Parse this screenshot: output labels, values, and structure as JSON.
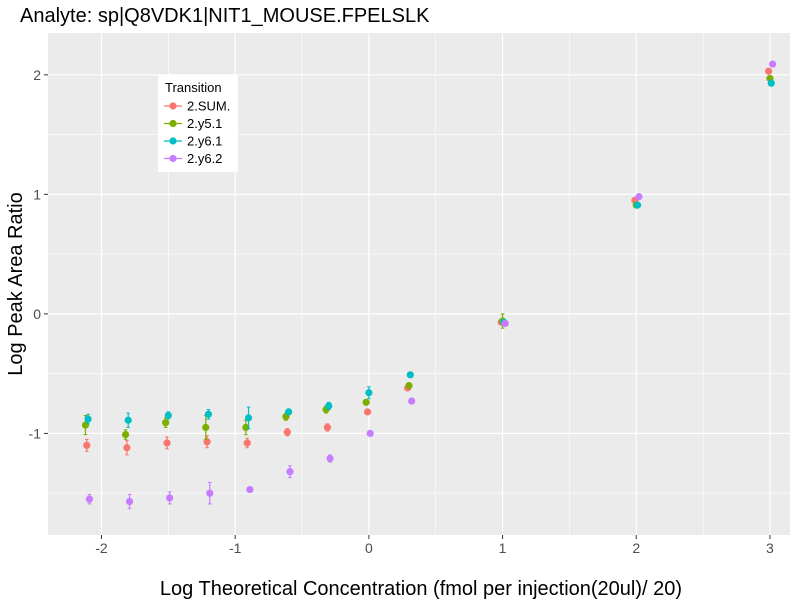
{
  "chart_data": {
    "type": "scatter",
    "title": "Analyte: sp|Q8VDK1|NIT1_MOUSE.FPELSLK",
    "xlabel": "Log Theoretical Concentration (fmol per injection(20ul)/ 20)",
    "ylabel": "Log Peak Area Ratio",
    "xlim": [
      -2.4,
      3.15
    ],
    "ylim": [
      -1.85,
      2.35
    ],
    "x_ticks": [
      -2,
      -1,
      0,
      1,
      2,
      3
    ],
    "x_tick_labels": [
      "-2",
      "-1",
      "0",
      "1",
      "2",
      "3"
    ],
    "y_ticks": [
      -1,
      0,
      1,
      2
    ],
    "y_tick_labels": [
      "-1",
      "0",
      "1",
      "2"
    ],
    "grid": true,
    "legend": {
      "title": "Transition",
      "position": "top-left"
    },
    "series": [
      {
        "name": "2.SUM.",
        "color": "#F8766D",
        "points": [
          {
            "x": -2.11,
            "y": -1.1,
            "err": 0.05
          },
          {
            "x": -1.81,
            "y": -1.12,
            "err": 0.06
          },
          {
            "x": -1.51,
            "y": -1.08,
            "err": 0.05
          },
          {
            "x": -1.21,
            "y": -1.07,
            "err": 0.05
          },
          {
            "x": -0.91,
            "y": -1.08,
            "err": 0.04
          },
          {
            "x": -0.61,
            "y": -0.99,
            "err": 0.03
          },
          {
            "x": -0.31,
            "y": -0.95,
            "err": 0.03
          },
          {
            "x": -0.01,
            "y": -0.82,
            "err": 0.02
          },
          {
            "x": 0.29,
            "y": -0.62,
            "err": 0.02
          },
          {
            "x": 0.99,
            "y": -0.07,
            "err": 0.02
          },
          {
            "x": 1.99,
            "y": 0.95,
            "err": 0.02
          },
          {
            "x": 2.99,
            "y": 2.03,
            "err": 0.02
          }
        ]
      },
      {
        "name": "2.y5.1",
        "color": "#7CAE00",
        "points": [
          {
            "x": -2.12,
            "y": -0.93,
            "err": 0.08
          },
          {
            "x": -1.82,
            "y": -1.01,
            "err": 0.04
          },
          {
            "x": -1.52,
            "y": -0.91,
            "err": 0.04
          },
          {
            "x": -1.22,
            "y": -0.95,
            "err": 0.1
          },
          {
            "x": -0.92,
            "y": -0.95,
            "err": 0.06
          },
          {
            "x": -0.62,
            "y": -0.86,
            "err": 0.03
          },
          {
            "x": -0.32,
            "y": -0.8,
            "err": 0.03
          },
          {
            "x": -0.02,
            "y": -0.74,
            "err": 0.02
          },
          {
            "x": 0.3,
            "y": -0.6,
            "err": 0.02
          },
          {
            "x": 1.0,
            "y": -0.06,
            "err": 0.06
          },
          {
            "x": 2.0,
            "y": 0.91,
            "err": 0.02
          },
          {
            "x": 3.0,
            "y": 1.97,
            "err": 0.02
          }
        ]
      },
      {
        "name": "2.y6.1",
        "color": "#00BFC4",
        "points": [
          {
            "x": -2.1,
            "y": -0.88,
            "err": 0.04
          },
          {
            "x": -1.8,
            "y": -0.89,
            "err": 0.06
          },
          {
            "x": -1.5,
            "y": -0.85,
            "err": 0.03
          },
          {
            "x": -1.2,
            "y": -0.84,
            "err": 0.04
          },
          {
            "x": -0.9,
            "y": -0.87,
            "err": 0.09
          },
          {
            "x": -0.6,
            "y": -0.82,
            "err": 0.02
          },
          {
            "x": -0.3,
            "y": -0.77,
            "err": 0.03
          },
          {
            "x": 0.0,
            "y": -0.66,
            "err": 0.05
          },
          {
            "x": 0.31,
            "y": -0.51,
            "err": 0.02
          },
          {
            "x": 1.01,
            "y": -0.07,
            "err": 0.02
          },
          {
            "x": 2.01,
            "y": 0.91,
            "err": 0.02
          },
          {
            "x": 3.01,
            "y": 1.93,
            "err": 0.02
          }
        ]
      },
      {
        "name": "2.y6.2",
        "color": "#C77CFF",
        "points": [
          {
            "x": -2.09,
            "y": -1.55,
            "err": 0.04
          },
          {
            "x": -1.79,
            "y": -1.57,
            "err": 0.06
          },
          {
            "x": -1.49,
            "y": -1.54,
            "err": 0.05
          },
          {
            "x": -1.19,
            "y": -1.5,
            "err": 0.09
          },
          {
            "x": -0.89,
            "y": -1.47,
            "err": 0.02
          },
          {
            "x": -0.59,
            "y": -1.32,
            "err": 0.05
          },
          {
            "x": -0.29,
            "y": -1.21,
            "err": 0.03
          },
          {
            "x": 0.01,
            "y": -1.0,
            "err": 0.02
          },
          {
            "x": 0.32,
            "y": -0.73,
            "err": 0.02
          },
          {
            "x": 1.02,
            "y": -0.08,
            "err": 0.02
          },
          {
            "x": 2.02,
            "y": 0.98,
            "err": 0.02
          },
          {
            "x": 3.02,
            "y": 2.09,
            "err": 0.02
          }
        ]
      }
    ]
  }
}
